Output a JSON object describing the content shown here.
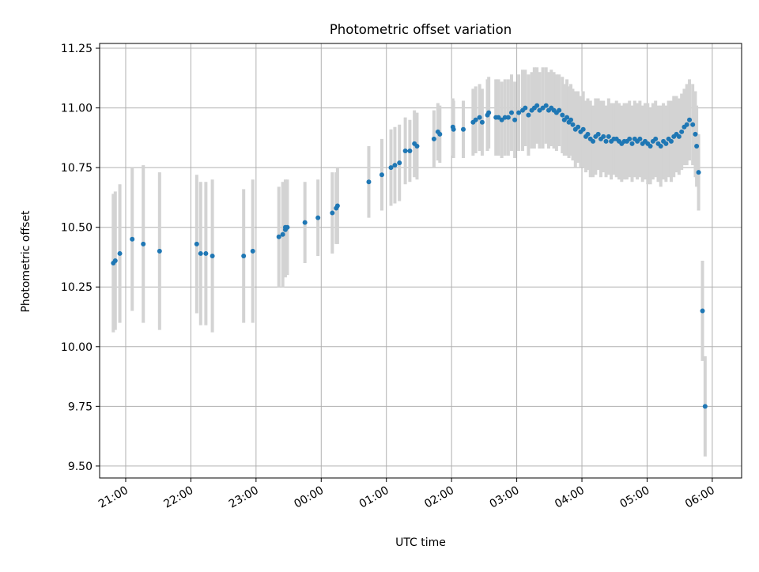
{
  "chart_data": {
    "type": "scatter",
    "title": "Photometric offset variation",
    "xlabel": "UTC time",
    "ylabel": "Photometric offset",
    "x_unit": "hours",
    "xlim": [
      20.6,
      30.45
    ],
    "ylim": [
      9.45,
      11.27
    ],
    "x_ticks": [
      {
        "value": 21,
        "label": "21:00"
      },
      {
        "value": 22,
        "label": "22:00"
      },
      {
        "value": 23,
        "label": "23:00"
      },
      {
        "value": 24,
        "label": "00:00"
      },
      {
        "value": 25,
        "label": "01:00"
      },
      {
        "value": 26,
        "label": "02:00"
      },
      {
        "value": 27,
        "label": "03:00"
      },
      {
        "value": 28,
        "label": "04:00"
      },
      {
        "value": 29,
        "label": "05:00"
      },
      {
        "value": 30,
        "label": "06:00"
      }
    ],
    "y_ticks": [
      {
        "value": 9.5,
        "label": "9.50"
      },
      {
        "value": 9.75,
        "label": "9.75"
      },
      {
        "value": 10.0,
        "label": "10.00"
      },
      {
        "value": 10.25,
        "label": "10.25"
      },
      {
        "value": 10.5,
        "label": "10.50"
      },
      {
        "value": 10.75,
        "label": "10.75"
      },
      {
        "value": 11.0,
        "label": "11.00"
      },
      {
        "value": 11.25,
        "label": "11.25"
      }
    ],
    "grid": true,
    "colors": {
      "points": "#1f77b4",
      "errorbars": "#d3d3d3",
      "grid": "#b0b0b0"
    },
    "series": [
      {
        "x": [
          20.81,
          20.84,
          20.91,
          21.1,
          21.27,
          21.52,
          22.09,
          22.15,
          22.23,
          22.33,
          22.81,
          22.95,
          23.35,
          23.41,
          23.45,
          23.45,
          23.48,
          23.75,
          23.95,
          24.17,
          24.23,
          24.25,
          24.73,
          24.93,
          25.07,
          25.13,
          25.2,
          25.29,
          25.36,
          25.43,
          25.47,
          25.73,
          25.79,
          25.82,
          26.02,
          26.03,
          26.18,
          26.33,
          26.37,
          26.43,
          26.47,
          26.55,
          26.57,
          26.68,
          26.72,
          26.77,
          26.82,
          26.87,
          26.92,
          26.97,
          27.03,
          27.09,
          27.13,
          27.18,
          27.23,
          27.27,
          27.31,
          27.35,
          27.4,
          27.45,
          27.49,
          27.53,
          27.57,
          27.61,
          27.65,
          27.7,
          27.73,
          27.77,
          27.8,
          27.83,
          27.86,
          27.9,
          27.94,
          27.98,
          28.02,
          28.06,
          28.09,
          28.13,
          28.17,
          28.21,
          28.25,
          28.29,
          28.33,
          28.37,
          28.41,
          28.45,
          28.49,
          28.53,
          28.57,
          28.61,
          28.65,
          28.69,
          28.73,
          28.77,
          28.81,
          28.85,
          28.89,
          28.93,
          28.97,
          29.01,
          29.05,
          29.09,
          29.13,
          29.17,
          29.21,
          29.25,
          29.29,
          29.33,
          29.37,
          29.41,
          29.45,
          29.49,
          29.53,
          29.57,
          29.61,
          29.65,
          29.7,
          29.74,
          29.76,
          29.79,
          29.85,
          29.89
        ],
        "y": [
          10.35,
          10.36,
          10.39,
          10.45,
          10.43,
          10.4,
          10.43,
          10.39,
          10.39,
          10.38,
          10.38,
          10.4,
          10.46,
          10.47,
          10.5,
          10.49,
          10.5,
          10.52,
          10.54,
          10.56,
          10.58,
          10.59,
          10.69,
          10.72,
          10.75,
          10.76,
          10.77,
          10.82,
          10.82,
          10.85,
          10.84,
          10.87,
          10.9,
          10.89,
          10.92,
          10.91,
          10.91,
          10.94,
          10.95,
          10.96,
          10.94,
          10.97,
          10.98,
          10.96,
          10.96,
          10.95,
          10.96,
          10.96,
          10.98,
          10.95,
          10.98,
          10.99,
          11.0,
          10.97,
          10.99,
          11.0,
          11.01,
          10.99,
          11.0,
          11.01,
          10.99,
          11.0,
          10.99,
          10.98,
          10.99,
          10.97,
          10.95,
          10.96,
          10.94,
          10.95,
          10.93,
          10.91,
          10.92,
          10.9,
          10.91,
          10.88,
          10.89,
          10.87,
          10.86,
          10.88,
          10.89,
          10.87,
          10.88,
          10.86,
          10.88,
          10.86,
          10.87,
          10.87,
          10.86,
          10.85,
          10.86,
          10.86,
          10.87,
          10.85,
          10.87,
          10.86,
          10.87,
          10.85,
          10.86,
          10.85,
          10.84,
          10.86,
          10.87,
          10.85,
          10.84,
          10.86,
          10.85,
          10.87,
          10.86,
          10.88,
          10.89,
          10.88,
          10.9,
          10.92,
          10.93,
          10.95,
          10.93,
          10.89,
          10.84,
          10.73,
          10.15,
          9.75
        ],
        "yerr": [
          0.29,
          0.29,
          0.29,
          0.3,
          0.33,
          0.33,
          0.29,
          0.3,
          0.3,
          0.32,
          0.28,
          0.3,
          0.21,
          0.22,
          0.2,
          0.2,
          0.2,
          0.17,
          0.16,
          0.17,
          0.15,
          0.16,
          0.15,
          0.15,
          0.16,
          0.16,
          0.16,
          0.14,
          0.13,
          0.14,
          0.14,
          0.12,
          0.12,
          0.12,
          0.12,
          0.12,
          0.12,
          0.14,
          0.14,
          0.14,
          0.14,
          0.15,
          0.15,
          0.16,
          0.16,
          0.16,
          0.16,
          0.16,
          0.16,
          0.16,
          0.16,
          0.17,
          0.16,
          0.17,
          0.16,
          0.17,
          0.16,
          0.16,
          0.17,
          0.16,
          0.16,
          0.16,
          0.16,
          0.16,
          0.15,
          0.16,
          0.15,
          0.16,
          0.15,
          0.15,
          0.15,
          0.16,
          0.15,
          0.15,
          0.16,
          0.15,
          0.15,
          0.16,
          0.15,
          0.16,
          0.15,
          0.16,
          0.15,
          0.15,
          0.16,
          0.16,
          0.15,
          0.16,
          0.16,
          0.16,
          0.16,
          0.16,
          0.16,
          0.16,
          0.16,
          0.16,
          0.16,
          0.16,
          0.16,
          0.17,
          0.16,
          0.16,
          0.16,
          0.16,
          0.17,
          0.16,
          0.16,
          0.16,
          0.17,
          0.17,
          0.16,
          0.16,
          0.16,
          0.16,
          0.17,
          0.17,
          0.17,
          0.18,
          0.17,
          0.16,
          0.21,
          0.21
        ]
      }
    ]
  }
}
